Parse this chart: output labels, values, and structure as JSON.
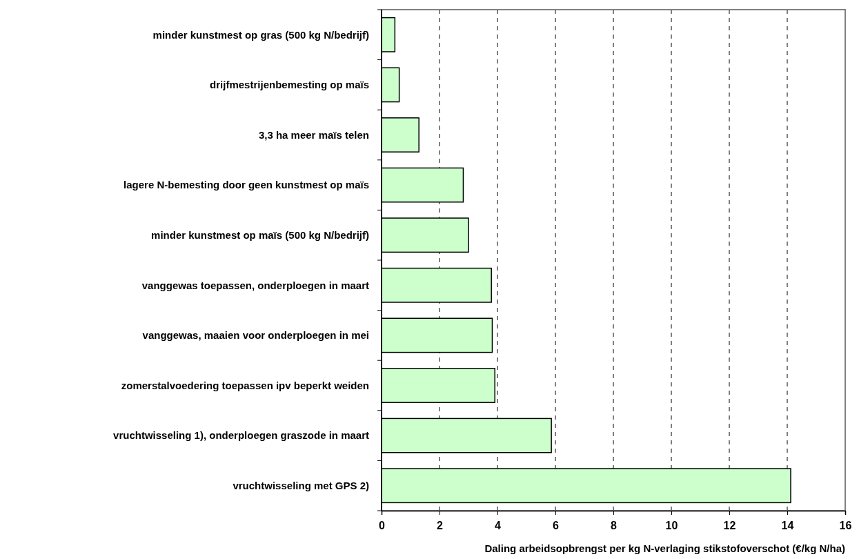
{
  "chart_data": {
    "type": "bar",
    "orientation": "horizontal",
    "categories": [
      "minder kunstmest op gras (500 kg N/bedrijf)",
      "drijfmestrijenbemesting op maïs",
      "3,3 ha meer maïs telen",
      "lagere N-bemesting door geen kunstmest op maïs",
      "minder kunstmest op maïs (500 kg N/bedrijf)",
      "vanggewas toepassen, onderploegen in maart",
      "vanggewas, maaien voor onderploegen in mei",
      "zomerstalvoedering toepassen ipv beperkt weiden",
      "vruchtwisseling 1), onderploegen graszode in maart",
      "vruchtwisseling met GPS 2)"
    ],
    "values": [
      0.46,
      0.61,
      1.29,
      2.82,
      3.0,
      3.79,
      3.82,
      3.91,
      5.86,
      14.12
    ],
    "color": "#ccffcc",
    "xlabel": "Daling arbeidsopbrengst per kg N-verlaging stikstofoverschot (€/kg N/ha)",
    "xlim": [
      0,
      16
    ],
    "xticks": [
      0,
      2,
      4,
      6,
      8,
      10,
      12,
      14,
      16
    ],
    "grid": "x",
    "line_style": "dashed"
  }
}
